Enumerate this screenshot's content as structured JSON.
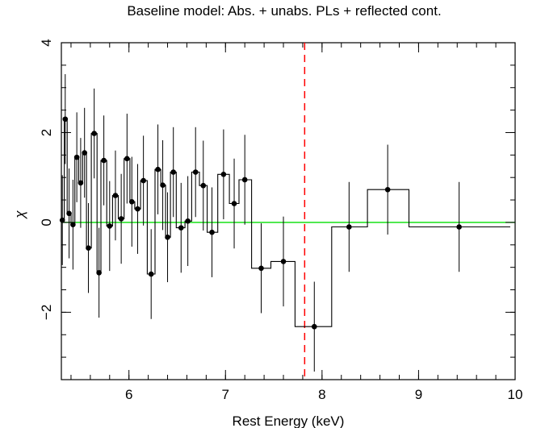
{
  "chart_data": {
    "type": "scatter",
    "title": "Baseline model: Abs. + unabs. PLs + reflected cont.",
    "xlabel": "Rest Energy (keV)",
    "ylabel": "χ",
    "xlim": [
      5.3,
      10.0
    ],
    "ylim": [
      -3.5,
      4.0
    ],
    "x_ticks": [
      6,
      7,
      8,
      9,
      10
    ],
    "y_ticks": [
      -2,
      0,
      2,
      4
    ],
    "x_tick_labels": [
      "6",
      "7",
      "8",
      "9",
      "10"
    ],
    "y_tick_labels": [
      "−2",
      "0",
      "2",
      "4"
    ],
    "reference_line": {
      "y": 0,
      "color": "#00dd00"
    },
    "marker_line": {
      "x": 7.82,
      "color": "#ff0000",
      "style": "dashed"
    },
    "series": [
      {
        "points": [
          {
            "x": 5.31,
            "y": 0.05,
            "xlo": 5.29,
            "xhi": 5.33,
            "err": 1.0
          },
          {
            "x": 5.34,
            "y": 2.3,
            "xlo": 5.33,
            "xhi": 5.36,
            "err": 1.0
          },
          {
            "x": 5.38,
            "y": 0.2,
            "xlo": 5.36,
            "xhi": 5.4,
            "err": 1.0
          },
          {
            "x": 5.42,
            "y": -0.05,
            "xlo": 5.4,
            "xhi": 5.44,
            "err": 1.0
          },
          {
            "x": 5.46,
            "y": 1.45,
            "xlo": 5.44,
            "xhi": 5.48,
            "err": 1.0
          },
          {
            "x": 5.5,
            "y": 0.88,
            "xlo": 5.48,
            "xhi": 5.52,
            "err": 1.0
          },
          {
            "x": 5.54,
            "y": 1.55,
            "xlo": 5.52,
            "xhi": 5.56,
            "err": 1.0
          },
          {
            "x": 5.58,
            "y": -0.57,
            "xlo": 5.56,
            "xhi": 5.61,
            "err": 1.0
          },
          {
            "x": 5.64,
            "y": 1.98,
            "xlo": 5.61,
            "xhi": 5.67,
            "err": 1.0
          },
          {
            "x": 5.69,
            "y": -1.12,
            "xlo": 5.67,
            "xhi": 5.71,
            "err": 1.0
          },
          {
            "x": 5.74,
            "y": 1.38,
            "xlo": 5.71,
            "xhi": 5.77,
            "err": 1.0
          },
          {
            "x": 5.8,
            "y": -0.08,
            "xlo": 5.77,
            "xhi": 5.83,
            "err": 1.0
          },
          {
            "x": 5.86,
            "y": 0.6,
            "xlo": 5.83,
            "xhi": 5.89,
            "err": 1.0
          },
          {
            "x": 5.92,
            "y": 0.08,
            "xlo": 5.89,
            "xhi": 5.95,
            "err": 1.0
          },
          {
            "x": 5.98,
            "y": 1.42,
            "xlo": 5.95,
            "xhi": 6.01,
            "err": 1.0
          },
          {
            "x": 6.03,
            "y": 0.46,
            "xlo": 6.01,
            "xhi": 6.06,
            "err": 1.0
          },
          {
            "x": 6.09,
            "y": 0.3,
            "xlo": 6.06,
            "xhi": 6.12,
            "err": 1.0
          },
          {
            "x": 6.15,
            "y": 0.93,
            "xlo": 6.12,
            "xhi": 6.19,
            "err": 1.0
          },
          {
            "x": 6.23,
            "y": -1.15,
            "xlo": 6.19,
            "xhi": 6.27,
            "err": 1.0
          },
          {
            "x": 6.3,
            "y": 1.18,
            "xlo": 6.27,
            "xhi": 6.33,
            "err": 1.0
          },
          {
            "x": 6.35,
            "y": 0.83,
            "xlo": 6.33,
            "xhi": 6.38,
            "err": 1.0
          },
          {
            "x": 6.4,
            "y": -0.33,
            "xlo": 6.38,
            "xhi": 6.43,
            "err": 1.0
          },
          {
            "x": 6.46,
            "y": 1.12,
            "xlo": 6.43,
            "xhi": 6.49,
            "err": 1.0
          },
          {
            "x": 6.54,
            "y": -0.12,
            "xlo": 6.49,
            "xhi": 6.58,
            "err": 1.0
          },
          {
            "x": 6.61,
            "y": 0.03,
            "xlo": 6.58,
            "xhi": 6.65,
            "err": 1.0
          },
          {
            "x": 6.69,
            "y": 1.12,
            "xlo": 6.65,
            "xhi": 6.73,
            "err": 1.0
          },
          {
            "x": 6.77,
            "y": 0.82,
            "xlo": 6.73,
            "xhi": 6.81,
            "err": 1.0
          },
          {
            "x": 6.86,
            "y": -0.22,
            "xlo": 6.81,
            "xhi": 6.92,
            "err": 1.0
          },
          {
            "x": 6.98,
            "y": 1.07,
            "xlo": 6.92,
            "xhi": 7.04,
            "err": 1.0
          },
          {
            "x": 7.09,
            "y": 0.42,
            "xlo": 7.04,
            "xhi": 7.14,
            "err": 1.0
          },
          {
            "x": 7.2,
            "y": 0.95,
            "xlo": 7.14,
            "xhi": 7.27,
            "err": 1.0
          },
          {
            "x": 7.37,
            "y": -1.02,
            "xlo": 7.27,
            "xhi": 7.47,
            "err": 1.0
          },
          {
            "x": 7.6,
            "y": -0.87,
            "xlo": 7.47,
            "xhi": 7.72,
            "err": 1.0
          },
          {
            "x": 7.92,
            "y": -2.32,
            "xlo": 7.72,
            "xhi": 8.1,
            "err": 1.0
          },
          {
            "x": 8.28,
            "y": -0.1,
            "xlo": 8.1,
            "xhi": 8.47,
            "err": 1.0
          },
          {
            "x": 8.68,
            "y": 0.73,
            "xlo": 8.47,
            "xhi": 8.9,
            "err": 1.0
          },
          {
            "x": 9.42,
            "y": -0.1,
            "xlo": 8.9,
            "xhi": 9.95,
            "err": 1.0
          }
        ]
      }
    ]
  }
}
